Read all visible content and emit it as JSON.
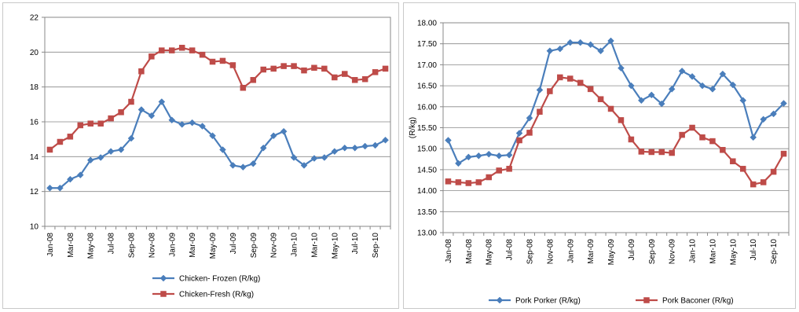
{
  "chart_data": [
    {
      "type": "line",
      "title": "",
      "xlabel": "",
      "ylabel": "",
      "ylim": [
        10,
        22
      ],
      "ystep": 2,
      "ydecimals": 0,
      "grid": true,
      "legend_placement": "bottom",
      "legend_layout": "stacked",
      "x": [
        "Jan-08",
        "Feb-08",
        "Mar-08",
        "Apr-08",
        "May-08",
        "Jun-08",
        "Jul-08",
        "Aug-08",
        "Sep-08",
        "Oct-08",
        "Nov-08",
        "Dec-08",
        "Jan-09",
        "Feb-09",
        "Mar-09",
        "Apr-09",
        "May-09",
        "Jun-09",
        "Jul-09",
        "Aug-09",
        "Sep-09",
        "Oct-09",
        "Nov-09",
        "Dec-09",
        "Jan-10",
        "Feb-10",
        "Mar-10",
        "Apr-10",
        "May-10",
        "Jun-10",
        "Jul-10",
        "Aug-10",
        "Sep-10",
        "Oct-10"
      ],
      "tick_labels": [
        "Jan-08",
        "Mar-08",
        "May-08",
        "Jul-08",
        "Sep-08",
        "Nov-08",
        "Jan-09",
        "Mar-09",
        "May-09",
        "Jul-09",
        "Sep-09",
        "Nov-09",
        "Jan-10",
        "Mar-10",
        "May-10",
        "Jul-10",
        "Sep-10"
      ],
      "series": [
        {
          "name": "Chicken- Frozen (R/kg)",
          "color": "#4a7ebb",
          "marker": "diamond",
          "values": [
            12.2,
            12.2,
            12.7,
            12.95,
            13.8,
            13.95,
            14.3,
            14.4,
            15.05,
            16.7,
            16.35,
            17.15,
            16.1,
            15.85,
            15.95,
            15.75,
            15.2,
            14.4,
            13.5,
            13.4,
            13.6,
            14.5,
            15.2,
            15.45,
            13.95,
            13.5,
            13.9,
            13.95,
            14.3,
            14.5,
            14.5,
            14.6,
            14.65,
            14.95
          ]
        },
        {
          "name": "Chicken-Fresh (R/kg)",
          "color": "#be4b48",
          "marker": "square",
          "values": [
            14.4,
            14.85,
            15.15,
            15.8,
            15.9,
            15.9,
            16.2,
            16.55,
            17.15,
            18.9,
            19.75,
            20.1,
            20.1,
            20.25,
            20.1,
            19.85,
            19.45,
            19.5,
            19.25,
            17.95,
            18.4,
            19.0,
            19.05,
            19.2,
            19.2,
            18.95,
            19.1,
            19.05,
            18.55,
            18.75,
            18.4,
            18.45,
            18.85,
            19.05
          ]
        }
      ]
    },
    {
      "type": "line",
      "title": "",
      "xlabel": "",
      "ylabel": "(R/kg)",
      "ylim": [
        13.0,
        18.0
      ],
      "ystep": 0.5,
      "ydecimals": 2,
      "grid": true,
      "legend_placement": "bottom",
      "legend_layout": "row",
      "x": [
        "Jan-08",
        "Feb-08",
        "Mar-08",
        "Apr-08",
        "May-08",
        "Jun-08",
        "Jul-08",
        "Aug-08",
        "Sep-08",
        "Oct-08",
        "Nov-08",
        "Dec-08",
        "Jan-09",
        "Feb-09",
        "Mar-09",
        "Apr-09",
        "May-09",
        "Jun-09",
        "Jul-09",
        "Aug-09",
        "Sep-09",
        "Oct-09",
        "Nov-09",
        "Dec-09",
        "Jan-10",
        "Feb-10",
        "Mar-10",
        "Apr-10",
        "May-10",
        "Jun-10",
        "Jul-10",
        "Aug-10",
        "Sep-10",
        "Oct-10"
      ],
      "tick_labels": [
        "Jan-08",
        "Mar-08",
        "May-08",
        "Jul-08",
        "Sep-08",
        "Nov-08",
        "Jan-09",
        "Mar-09",
        "May-09",
        "Jul-09",
        "Sep-09",
        "Nov-09",
        "Jan-10",
        "Mar-10",
        "May-10",
        "Jul-10",
        "Sep-10"
      ],
      "series": [
        {
          "name": "Pork Porker (R/kg)",
          "color": "#4a7ebb",
          "marker": "diamond",
          "values": [
            15.2,
            14.65,
            14.8,
            14.83,
            14.87,
            14.83,
            14.85,
            15.37,
            15.73,
            16.4,
            17.33,
            17.38,
            17.53,
            17.53,
            17.48,
            17.33,
            17.57,
            16.92,
            16.5,
            16.15,
            16.28,
            16.07,
            16.42,
            16.85,
            16.72,
            16.5,
            16.42,
            16.78,
            16.52,
            16.15,
            15.27,
            15.7,
            15.83,
            16.08
          ]
        },
        {
          "name": "Pork Baconer (R/kg)",
          "color": "#be4b48",
          "marker": "square",
          "values": [
            14.22,
            14.2,
            14.18,
            14.2,
            14.32,
            14.48,
            14.52,
            15.2,
            15.38,
            15.88,
            16.37,
            16.7,
            16.67,
            16.57,
            16.42,
            16.18,
            15.95,
            15.68,
            15.22,
            14.93,
            14.92,
            14.92,
            14.9,
            15.33,
            15.5,
            15.27,
            15.18,
            14.97,
            14.7,
            14.52,
            14.15,
            14.2,
            14.45,
            14.88
          ]
        }
      ]
    }
  ]
}
